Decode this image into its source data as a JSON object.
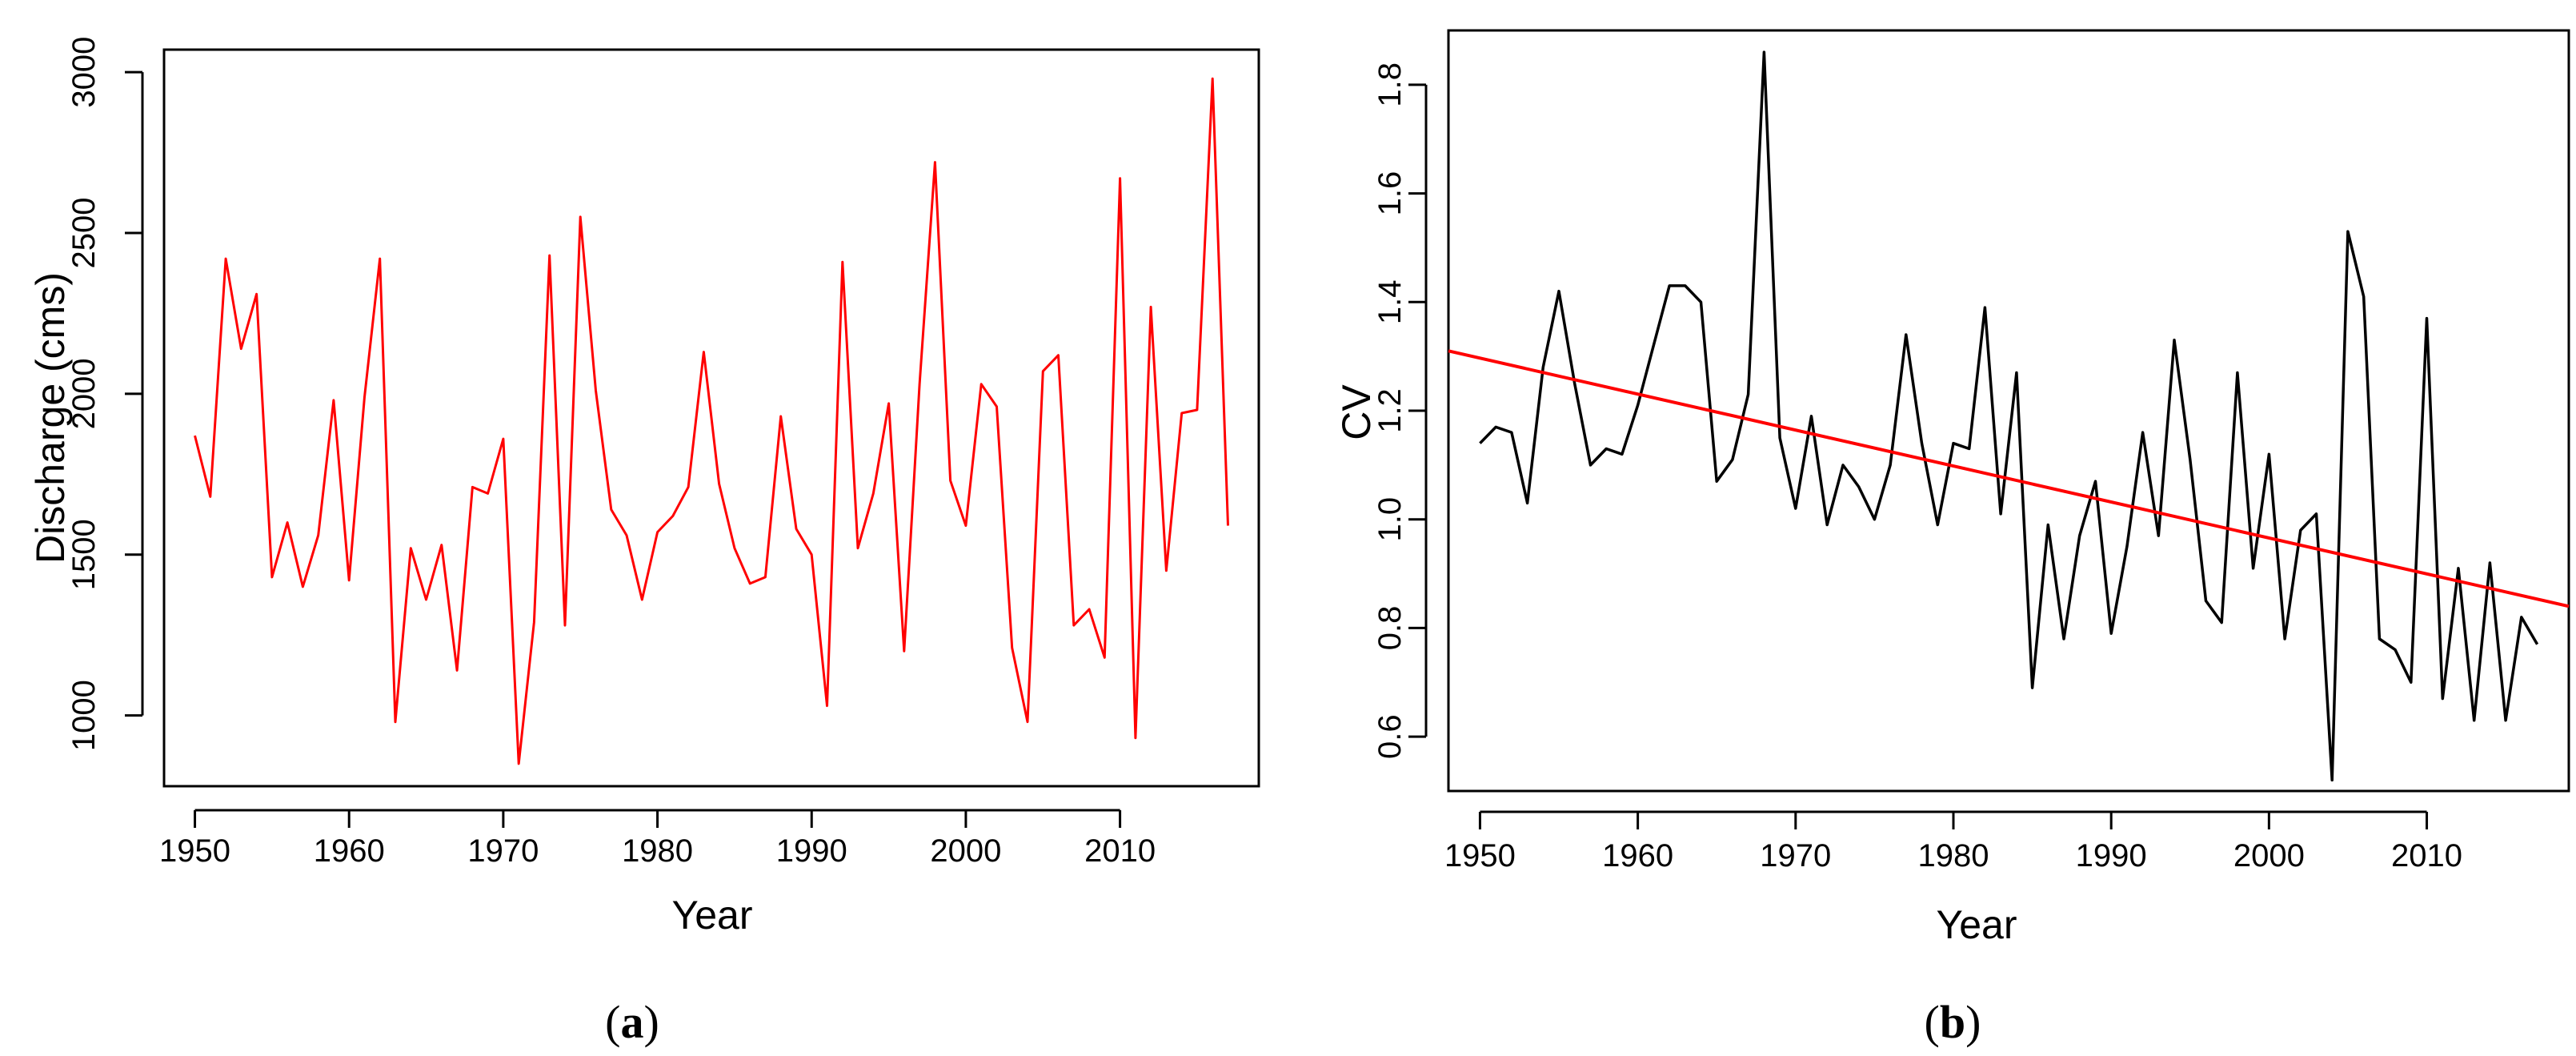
{
  "chart_data": [
    {
      "panel_label": "a",
      "type": "line",
      "title": "",
      "xlabel": "Year",
      "ylabel": "Discharge (cms)",
      "xlim": [
        1948,
        2019
      ],
      "ylim": [
        780,
        3070
      ],
      "xticks": [
        "1950",
        "1960",
        "1970",
        "1980",
        "1990",
        "2000",
        "2010"
      ],
      "yticks": [
        "1000",
        "1500",
        "2000",
        "2500",
        "3000"
      ],
      "line_color": "#ff0000",
      "series": [
        {
          "name": "Discharge",
          "x": [
            1950,
            1951,
            1952,
            1953,
            1954,
            1955,
            1956,
            1957,
            1958,
            1959,
            1960,
            1961,
            1962,
            1963,
            1964,
            1965,
            1966,
            1967,
            1968,
            1969,
            1970,
            1971,
            1972,
            1973,
            1974,
            1975,
            1976,
            1977,
            1978,
            1979,
            1980,
            1981,
            1982,
            1983,
            1984,
            1985,
            1986,
            1987,
            1988,
            1989,
            1990,
            1991,
            1992,
            1993,
            1994,
            1995,
            1996,
            1997,
            1998,
            1999,
            2000,
            2001,
            2002,
            2003,
            2004,
            2005,
            2006,
            2007,
            2008,
            2009,
            2010,
            2011,
            2012,
            2013,
            2014,
            2015,
            2016,
            2017
          ],
          "values": [
            1870,
            1680,
            2420,
            2140,
            2310,
            1430,
            1600,
            1400,
            1560,
            1980,
            1420,
            1990,
            2420,
            980,
            1520,
            1360,
            1530,
            1140,
            1710,
            1690,
            1860,
            850,
            1290,
            2430,
            1280,
            2550,
            2010,
            1640,
            1560,
            1360,
            1570,
            1620,
            1710,
            2130,
            1720,
            1520,
            1410,
            1430,
            1930,
            1580,
            1500,
            1030,
            2410,
            1520,
            1690,
            1970,
            1200,
            2030,
            2720,
            1730,
            1590,
            2030,
            1960,
            1210,
            980,
            2070,
            2120,
            1280,
            1330,
            1180,
            2670,
            930,
            2270,
            1450,
            1940,
            1950,
            2980,
            1590
          ]
        }
      ]
    },
    {
      "panel_label": "b",
      "type": "line",
      "title": "",
      "xlabel": "Year",
      "ylabel": "CV",
      "xlim": [
        1948,
        2019
      ],
      "ylim": [
        0.5,
        1.9
      ],
      "xticks": [
        "1950",
        "1960",
        "1970",
        "1980",
        "1990",
        "2000",
        "2010"
      ],
      "yticks": [
        "0.6",
        "0.8",
        "1.0",
        "1.2",
        "1.4",
        "1.6",
        "1.8"
      ],
      "line_color": "#000000",
      "series": [
        {
          "name": "CV",
          "x": [
            1950,
            1951,
            1952,
            1953,
            1954,
            1955,
            1956,
            1957,
            1958,
            1959,
            1960,
            1961,
            1962,
            1963,
            1964,
            1965,
            1966,
            1967,
            1968,
            1969,
            1970,
            1971,
            1972,
            1973,
            1974,
            1975,
            1976,
            1977,
            1978,
            1979,
            1980,
            1981,
            1982,
            1983,
            1984,
            1985,
            1986,
            1987,
            1988,
            1989,
            1990,
            1991,
            1992,
            1993,
            1994,
            1995,
            1996,
            1997,
            1998,
            1999,
            2000,
            2001,
            2002,
            2003,
            2004,
            2005,
            2006,
            2007,
            2008,
            2009,
            2010,
            2011,
            2012,
            2013,
            2014,
            2015,
            2016,
            2017
          ],
          "values": [
            1.14,
            1.17,
            1.16,
            1.03,
            1.28,
            1.42,
            1.25,
            1.1,
            1.13,
            1.12,
            1.21,
            1.32,
            1.43,
            1.43,
            1.4,
            1.07,
            1.11,
            1.23,
            1.86,
            1.15,
            1.02,
            1.19,
            0.99,
            1.1,
            1.06,
            1.0,
            1.1,
            1.34,
            1.14,
            0.99,
            1.14,
            1.13,
            1.39,
            1.01,
            1.27,
            0.69,
            0.99,
            0.78,
            0.97,
            1.07,
            0.79,
            0.95,
            1.16,
            0.97,
            1.33,
            1.11,
            0.85,
            0.81,
            1.27,
            0.91,
            1.12,
            0.78,
            0.98,
            1.01,
            0.52,
            1.53,
            1.41,
            0.78,
            0.76,
            0.7,
            1.37,
            0.67,
            0.91,
            0.63,
            0.92,
            0.63,
            0.82,
            0.77
          ]
        },
        {
          "name": "Trend",
          "x": [
            1948,
            2019
          ],
          "values": [
            1.31,
            0.84
          ],
          "line_color": "#ff0000"
        }
      ]
    }
  ]
}
